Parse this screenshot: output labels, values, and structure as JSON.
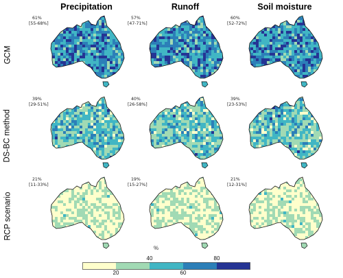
{
  "columns": [
    "Precipitation",
    "Runoff",
    "Soil moisture"
  ],
  "rows": [
    "GCM",
    "DS-BC method",
    "RCP scenario"
  ],
  "panels": [
    [
      {
        "pct": "61%",
        "range": "[55-68%]",
        "level": 3
      },
      {
        "pct": "57%",
        "range": "[47-71%]",
        "level": 3
      },
      {
        "pct": "60%",
        "range": "[52-72%]",
        "level": 3
      }
    ],
    [
      {
        "pct": "39%",
        "range": "[29-51%]",
        "level": 2
      },
      {
        "pct": "40%",
        "range": "[26-58%]",
        "level": 2
      },
      {
        "pct": "39%",
        "range": "[23-53%]",
        "level": 2
      }
    ],
    [
      {
        "pct": "21%",
        "range": "[11-33%]",
        "level": 1
      },
      {
        "pct": "19%",
        "range": "[15-27%]",
        "level": 1
      },
      {
        "pct": "21%",
        "range": "[12-31%]",
        "level": 1
      }
    ]
  ],
  "legend": {
    "unit": "%",
    "colors": [
      "#ffffcc",
      "#a1dab4",
      "#41b6c4",
      "#2c7fb8",
      "#253494"
    ],
    "ticks_top": [
      "40",
      "80"
    ],
    "ticks_bottom": [
      "20",
      "60"
    ]
  }
}
